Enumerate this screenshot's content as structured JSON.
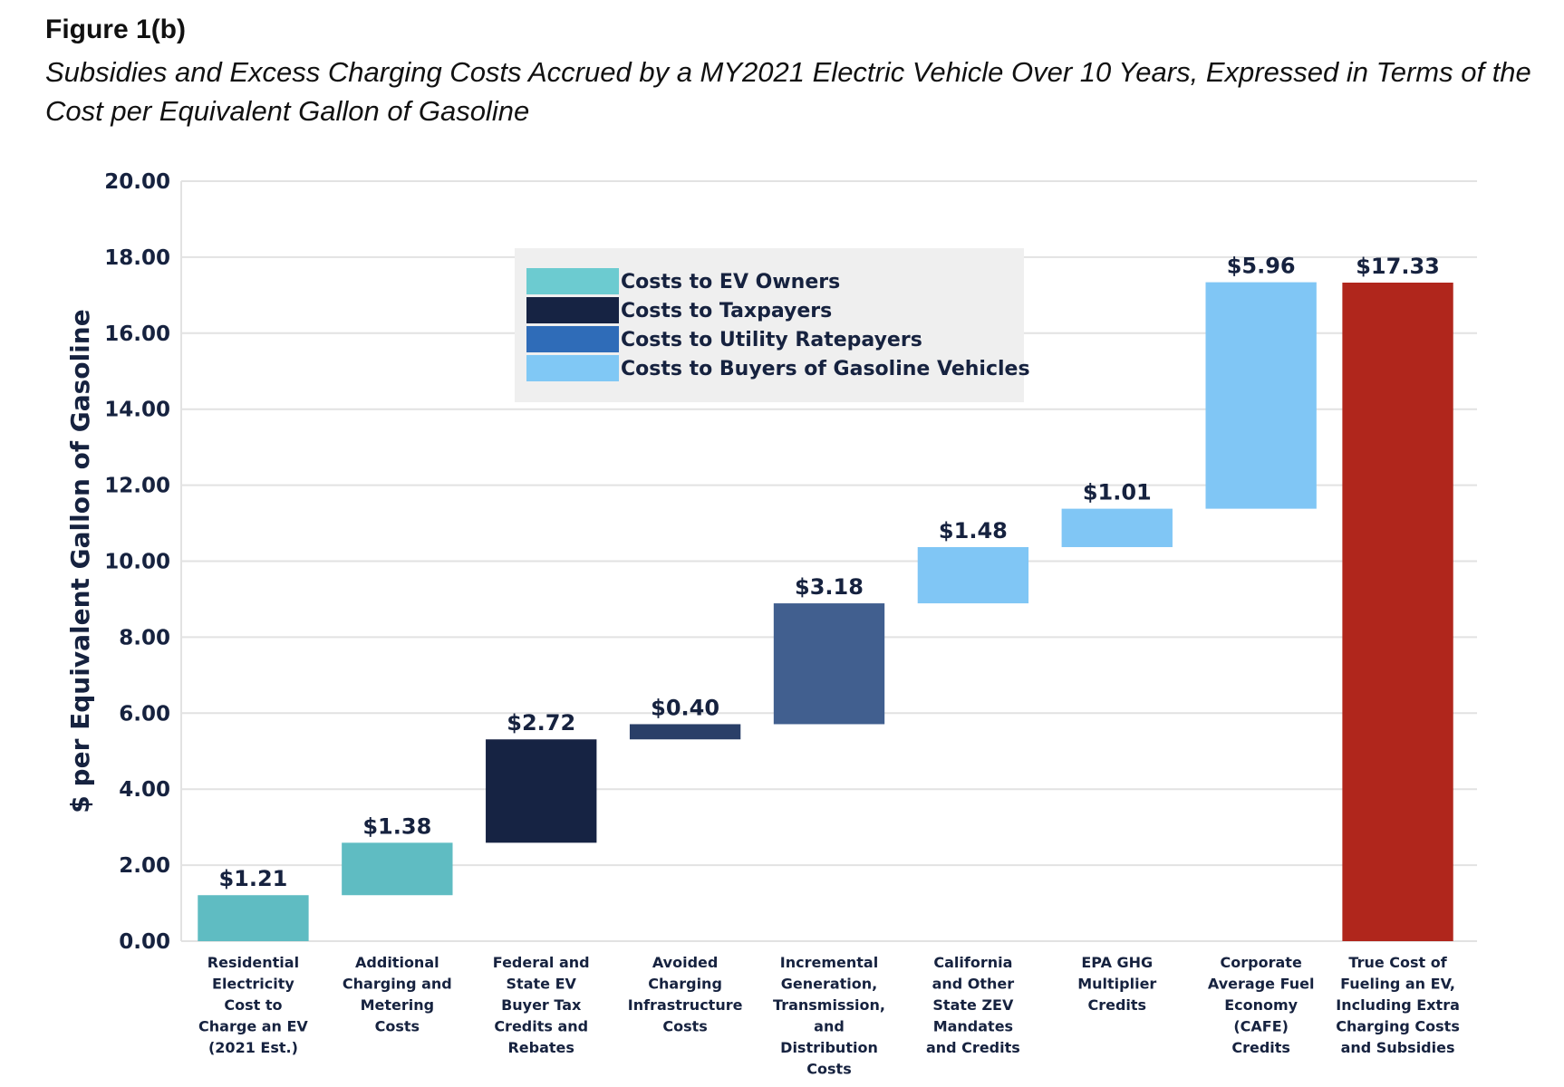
{
  "figure_label": "Figure 1(b)",
  "subtitle": "Subsidies and Excess Charging Costs Accrued by a MY2021 Electric Vehicle Over 10 Years, Expressed in Terms of the Cost per Equivalent Gallon of Gasoline",
  "chart_data": {
    "type": "waterfall",
    "title": "Subsidies and Excess Charging Costs Accrued by a MY2021 Electric Vehicle Over 10 Years, Expressed in Terms of the Cost per Equivalent Gallon of Gasoline",
    "ylabel": "$ per Equivalent Gallon of Gasoline",
    "xlabel": "",
    "ylim": [
      0,
      20
    ],
    "yticks": [
      "0.00",
      "2.00",
      "4.00",
      "6.00",
      "8.00",
      "10.00",
      "12.00",
      "14.00",
      "16.00",
      "18.00",
      "20.00"
    ],
    "grid": true,
    "legend_position": "top-center",
    "legend": [
      {
        "name": "Costs to EV Owners",
        "color": "#6ccbd0"
      },
      {
        "name": "Costs to Taxpayers",
        "color": "#162343"
      },
      {
        "name": "Costs to Utility Ratepayers",
        "color": "#2f6cb8"
      },
      {
        "name": "Costs to Buyers of Gasoline Vehicles",
        "color": "#80c8f5"
      }
    ],
    "bars": [
      {
        "category": [
          "Residential",
          "Electricity",
          "Cost to",
          "Charge an EV",
          "(2021 Est.)"
        ],
        "value": 1.21,
        "label": "$1.21",
        "group": "Costs to EV Owners",
        "color": "#5fbcc2"
      },
      {
        "category": [
          "Additional",
          "Charging and",
          "Metering",
          "Costs"
        ],
        "value": 1.38,
        "label": "$1.38",
        "group": "Costs to EV Owners",
        "color": "#5fbcc2"
      },
      {
        "category": [
          "Federal and",
          "State EV",
          "Buyer Tax",
          "Credits and",
          "Rebates"
        ],
        "value": 2.72,
        "label": "$2.72",
        "group": "Costs to Taxpayers",
        "color": "#162343"
      },
      {
        "category": [
          "Avoided",
          "Charging",
          "Infrastructure",
          "Costs"
        ],
        "value": 0.4,
        "label": "$0.40",
        "group": "Costs to Taxpayers",
        "color": "#2a3f68"
      },
      {
        "category": [
          "Incremental",
          "Generation,",
          "Transmission,",
          "and",
          "Distribution",
          "Costs"
        ],
        "value": 3.18,
        "label": "$3.18",
        "group": "Costs to Utility Ratepayers",
        "color": "#415f8f"
      },
      {
        "category": [
          "California",
          "and Other",
          "State ZEV",
          "Mandates",
          "and Credits"
        ],
        "value": 1.48,
        "label": "$1.48",
        "group": "Costs to Buyers of Gasoline Vehicles",
        "color": "#80c6f5"
      },
      {
        "category": [
          "EPA GHG",
          "Multiplier",
          "Credits"
        ],
        "value": 1.01,
        "label": "$1.01",
        "group": "Costs to Buyers of Gasoline Vehicles",
        "color": "#80c6f5"
      },
      {
        "category": [
          "Corporate",
          "Average Fuel",
          "Economy",
          "(CAFE)",
          "Credits"
        ],
        "value": 5.96,
        "label": "$5.96",
        "group": "Costs to Buyers of Gasoline Vehicles",
        "color": "#80c6f5"
      },
      {
        "category": [
          "True Cost of",
          "Fueling an EV,",
          "Including Extra",
          "Charging Costs",
          "and Subsidies"
        ],
        "value": 17.33,
        "label": "$17.33",
        "total": true,
        "color": "#b0261c"
      }
    ]
  }
}
